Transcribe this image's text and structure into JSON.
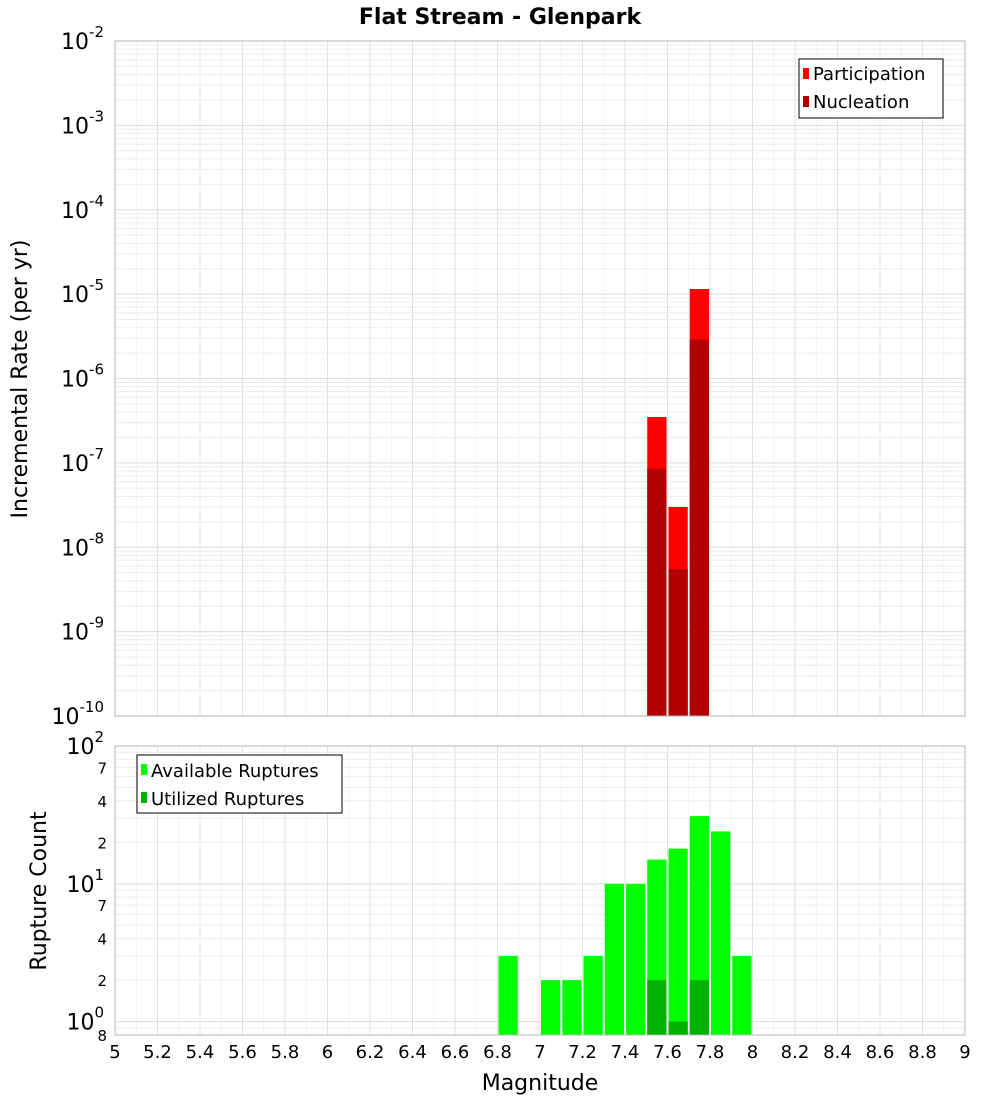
{
  "chart_data": [
    {
      "type": "bar",
      "title": "Flat Stream - Glenpark",
      "xlabel": "Magnitude",
      "ylabel": "Incremental Rate (per yr)",
      "y_scale": "log",
      "xlim": [
        5,
        9
      ],
      "ylim": [
        1e-10,
        0.01
      ],
      "y_ticks": [
        {
          "base": "10",
          "exp": "-10",
          "value": 1e-10
        },
        {
          "base": "10",
          "exp": "-9",
          "value": 1e-09
        },
        {
          "base": "10",
          "exp": "-8",
          "value": 1e-08
        },
        {
          "base": "10",
          "exp": "-7",
          "value": 1e-07
        },
        {
          "base": "10",
          "exp": "-6",
          "value": 1e-06
        },
        {
          "base": "10",
          "exp": "-5",
          "value": 1e-05
        },
        {
          "base": "10",
          "exp": "-4",
          "value": 0.0001
        },
        {
          "base": "10",
          "exp": "-3",
          "value": 0.001
        },
        {
          "base": "10",
          "exp": "-2",
          "value": 0.01
        }
      ],
      "legend_position": "top-right",
      "bar_width": 0.1,
      "series": [
        {
          "name": "Participation",
          "color": "#ff0000",
          "x": [
            7.55,
            7.65,
            7.75
          ],
          "values": [
            3.5e-07,
            3e-08,
            1.15e-05
          ]
        },
        {
          "name": "Nucleation",
          "color": "#b20000",
          "x": [
            7.55,
            7.65,
            7.75
          ],
          "values": [
            8.5e-08,
            5.5e-09,
            2.9e-06
          ]
        }
      ],
      "grid": true
    },
    {
      "type": "bar",
      "title": "",
      "xlabel": "Magnitude",
      "ylabel": "Rupture Count",
      "y_scale": "log",
      "xlim": [
        5,
        9
      ],
      "ylim": [
        0.8,
        100
      ],
      "y_ticks": [
        {
          "base": "10",
          "exp": "0",
          "value": 1
        },
        {
          "base": "10",
          "exp": "1",
          "value": 10
        },
        {
          "base": "10",
          "exp": "2",
          "value": 100
        }
      ],
      "y_minor_ticks": [
        {
          "label": "8",
          "value": 0.8
        },
        {
          "label": "2",
          "value": 2
        },
        {
          "label": "4",
          "value": 4
        },
        {
          "label": "7",
          "value": 7
        },
        {
          "label": "2",
          "value": 20
        },
        {
          "label": "4",
          "value": 40
        },
        {
          "label": "7",
          "value": 70
        }
      ],
      "legend_position": "top-left",
      "bar_width": 0.1,
      "series": [
        {
          "name": "Available Ruptures",
          "color": "#00ff00",
          "x": [
            6.85,
            7.05,
            7.15,
            7.25,
            7.35,
            7.45,
            7.55,
            7.65,
            7.75,
            7.85,
            7.95
          ],
          "values": [
            3,
            2,
            2,
            3,
            10,
            10,
            15,
            18,
            31,
            24,
            3
          ]
        },
        {
          "name": "Utilized Ruptures",
          "color": "#00b200",
          "x": [
            7.55,
            7.65,
            7.75
          ],
          "values": [
            2,
            1,
            2
          ]
        }
      ],
      "grid": true
    }
  ],
  "x_ticks": [
    "5",
    "5.2",
    "5.4",
    "5.6",
    "5.8",
    "6",
    "6.2",
    "6.4",
    "6.6",
    "6.8",
    "7",
    "7.2",
    "7.4",
    "7.6",
    "7.8",
    "8",
    "8.2",
    "8.4",
    "8.6",
    "8.8",
    "9"
  ]
}
